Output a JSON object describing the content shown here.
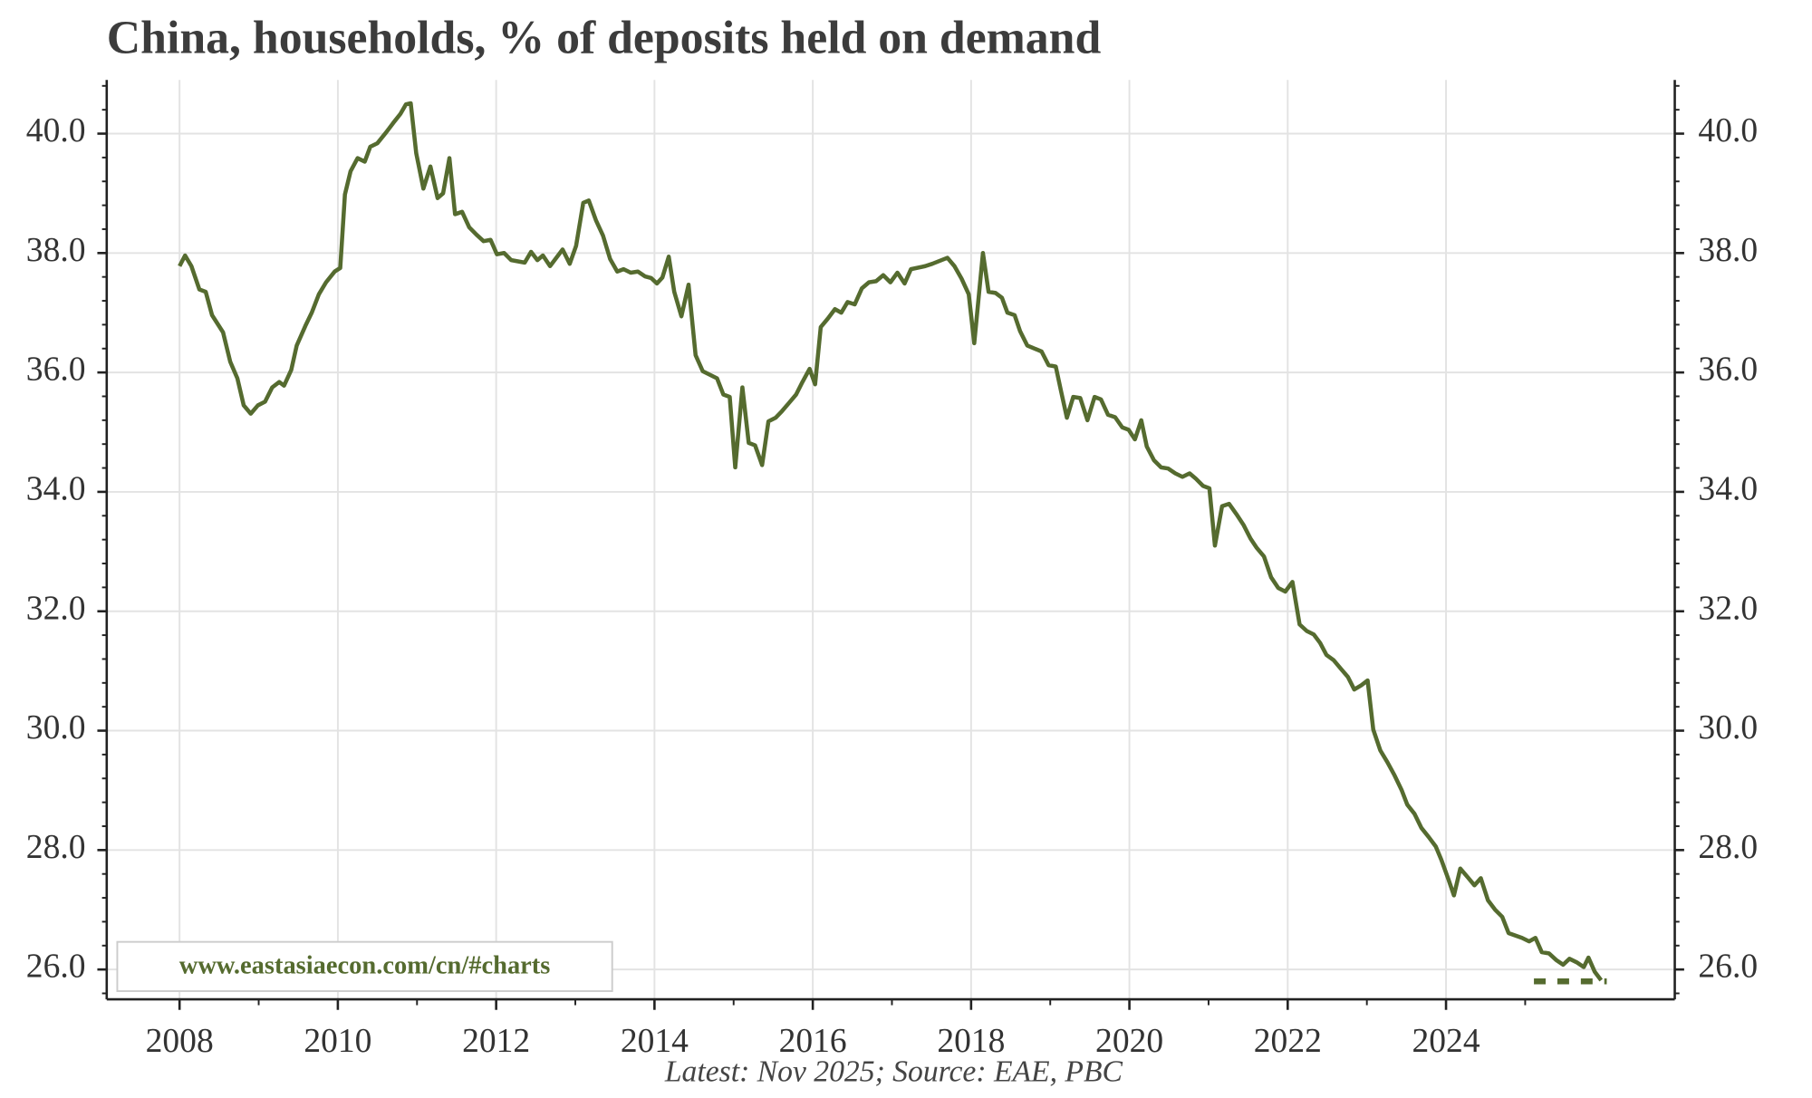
{
  "chart_data": {
    "type": "line",
    "title": "China, households, % of deposits held on demand",
    "footnote": "Latest: Nov 2025; Source: EAE, PBC",
    "watermark": "www.eastasiaecon.com/cn/#charts",
    "color": "#556b2f",
    "grid": true,
    "right_axis": true,
    "xlim": [
      2007.08,
      2026.89
    ],
    "ylim": [
      25.5,
      40.9
    ],
    "xticks": [
      2008,
      2010,
      2012,
      2014,
      2016,
      2018,
      2020,
      2022,
      2024
    ],
    "xminor": [
      2009,
      2011,
      2013,
      2015,
      2017,
      2019,
      2021,
      2023,
      2025
    ],
    "yticks": [
      {
        "value": 26,
        "label": "26.0"
      },
      {
        "value": 28,
        "label": "28.0"
      },
      {
        "value": 30,
        "label": "30.0"
      },
      {
        "value": 32,
        "label": "32.0"
      },
      {
        "value": 34,
        "label": "34.0"
      },
      {
        "value": 36,
        "label": "36.0"
      },
      {
        "value": 38,
        "label": "38.0"
      },
      {
        "value": 40,
        "label": "40.0"
      }
    ],
    "yminor": [
      25.6,
      26.4,
      26.8,
      27.2,
      27.6,
      28.4,
      28.8,
      29.2,
      29.6,
      30.4,
      30.8,
      31.2,
      31.6,
      32.4,
      32.8,
      33.2,
      33.6,
      34.4,
      34.8,
      35.2,
      35.6,
      36.4,
      36.8,
      37.2,
      37.6,
      38.4,
      38.8,
      39.2,
      39.6,
      40.4,
      40.8
    ],
    "x": [
      2008.0,
      2008.07,
      2008.15,
      2008.25,
      2008.33,
      2008.41,
      2008.55,
      2008.64,
      2008.73,
      2008.81,
      2008.9,
      2008.99,
      2009.08,
      2009.17,
      2009.26,
      2009.32,
      2009.41,
      2009.48,
      2009.59,
      2009.67,
      2009.76,
      2009.85,
      2009.96,
      2010.03,
      2010.09,
      2010.16,
      2010.25,
      2010.34,
      2010.41,
      2010.5,
      2010.61,
      2010.7,
      2010.79,
      2010.86,
      2010.92,
      2010.99,
      2011.08,
      2011.17,
      2011.26,
      2011.33,
      2011.41,
      2011.48,
      2011.57,
      2011.66,
      2011.75,
      2011.84,
      2011.93,
      2012.01,
      2012.1,
      2012.19,
      2012.36,
      2012.44,
      2012.52,
      2012.59,
      2012.68,
      2012.84,
      2012.93,
      2013.01,
      2013.1,
      2013.17,
      2013.26,
      2013.35,
      2013.44,
      2013.53,
      2013.61,
      2013.7,
      2013.79,
      2013.88,
      2013.96,
      2014.03,
      2014.1,
      2014.18,
      2014.25,
      2014.34,
      2014.43,
      2014.52,
      2014.61,
      2014.79,
      2014.87,
      2014.95,
      2015.02,
      2015.11,
      2015.19,
      2015.27,
      2015.36,
      2015.44,
      2015.53,
      2015.61,
      2015.7,
      2015.79,
      2015.87,
      2015.96,
      2016.03,
      2016.1,
      2016.19,
      2016.28,
      2016.36,
      2016.44,
      2016.53,
      2016.62,
      2016.71,
      2016.8,
      2016.89,
      2016.98,
      2017.07,
      2017.16,
      2017.24,
      2017.42,
      2017.51,
      2017.7,
      2017.79,
      2017.88,
      2017.97,
      2018.04,
      2018.15,
      2018.22,
      2018.31,
      2018.39,
      2018.46,
      2018.55,
      2018.62,
      2018.71,
      2018.89,
      2018.98,
      2019.07,
      2019.14,
      2019.21,
      2019.29,
      2019.38,
      2019.47,
      2019.56,
      2019.64,
      2019.73,
      2019.82,
      2019.91,
      2019.99,
      2020.07,
      2020.15,
      2020.22,
      2020.31,
      2020.4,
      2020.49,
      2020.58,
      2020.67,
      2020.76,
      2020.84,
      2020.93,
      2021.01,
      2021.08,
      2021.17,
      2021.26,
      2021.35,
      2021.44,
      2021.53,
      2021.61,
      2021.7,
      2021.79,
      2021.88,
      2021.97,
      2022.06,
      2022.15,
      2022.24,
      2022.33,
      2022.41,
      2022.49,
      2022.58,
      2022.67,
      2022.76,
      2022.84,
      2022.93,
      2023.01,
      2023.08,
      2023.17,
      2023.26,
      2023.35,
      2023.44,
      2023.51,
      2023.6,
      2023.69,
      2023.78,
      2023.87,
      2023.94,
      2024.03,
      2024.1,
      2024.18,
      2024.27,
      2024.36,
      2024.44,
      2024.53,
      2024.62,
      2024.71,
      2024.79,
      2024.87,
      2024.96,
      2025.05,
      2025.13,
      2025.21,
      2025.3,
      2025.39,
      2025.48,
      2025.56,
      2025.65,
      2025.74,
      2025.8,
      2025.88,
      2025.96
    ],
    "values": [
      37.78,
      37.96,
      37.78,
      37.39,
      37.35,
      36.96,
      36.67,
      36.18,
      35.9,
      35.45,
      35.31,
      35.45,
      35.51,
      35.75,
      35.84,
      35.78,
      36.04,
      36.45,
      36.78,
      37.0,
      37.31,
      37.51,
      37.69,
      37.75,
      38.98,
      39.37,
      39.59,
      39.53,
      39.78,
      39.84,
      40.02,
      40.18,
      40.33,
      40.49,
      40.51,
      39.67,
      39.08,
      39.45,
      38.92,
      39.0,
      39.59,
      38.65,
      38.69,
      38.43,
      38.31,
      38.2,
      38.22,
      37.98,
      38.0,
      37.88,
      37.84,
      38.02,
      37.88,
      37.96,
      37.78,
      38.06,
      37.82,
      38.12,
      38.84,
      38.88,
      38.55,
      38.29,
      37.9,
      37.69,
      37.73,
      37.67,
      37.69,
      37.61,
      37.58,
      37.49,
      37.59,
      37.94,
      37.35,
      36.94,
      37.47,
      36.29,
      36.02,
      35.9,
      35.63,
      35.59,
      34.41,
      35.75,
      34.82,
      34.78,
      34.45,
      35.18,
      35.24,
      35.35,
      35.49,
      35.63,
      35.84,
      36.06,
      35.8,
      36.76,
      36.9,
      37.06,
      37.0,
      37.18,
      37.14,
      37.41,
      37.51,
      37.53,
      37.63,
      37.51,
      37.67,
      37.49,
      37.73,
      37.78,
      37.82,
      37.92,
      37.78,
      37.57,
      37.31,
      36.49,
      38.0,
      37.35,
      37.33,
      37.25,
      37.0,
      36.96,
      36.69,
      36.45,
      36.35,
      36.12,
      36.1,
      35.67,
      35.24,
      35.59,
      35.57,
      35.2,
      35.59,
      35.55,
      35.29,
      35.25,
      35.08,
      35.04,
      34.88,
      35.2,
      34.76,
      34.53,
      34.41,
      34.39,
      34.31,
      34.25,
      34.31,
      34.22,
      34.1,
      34.06,
      33.1,
      33.76,
      33.8,
      33.63,
      33.45,
      33.22,
      33.06,
      32.92,
      32.57,
      32.39,
      32.33,
      32.49,
      31.78,
      31.67,
      31.61,
      31.47,
      31.27,
      31.18,
      31.04,
      30.9,
      30.69,
      30.76,
      30.84,
      30.02,
      29.67,
      29.47,
      29.25,
      29.0,
      28.76,
      28.61,
      28.37,
      28.22,
      28.06,
      27.84,
      27.51,
      27.24,
      27.69,
      27.55,
      27.41,
      27.53,
      27.16,
      27.0,
      26.88,
      26.61,
      26.57,
      26.53,
      26.47,
      26.53,
      26.29,
      26.27,
      26.16,
      26.08,
      26.18,
      26.12,
      26.04,
      26.2,
      25.96,
      25.82
    ],
    "latest_marker": {
      "x": [
        2025.11,
        2026.03
      ],
      "values": [
        25.8,
        25.8
      ],
      "style": "dotted"
    }
  }
}
